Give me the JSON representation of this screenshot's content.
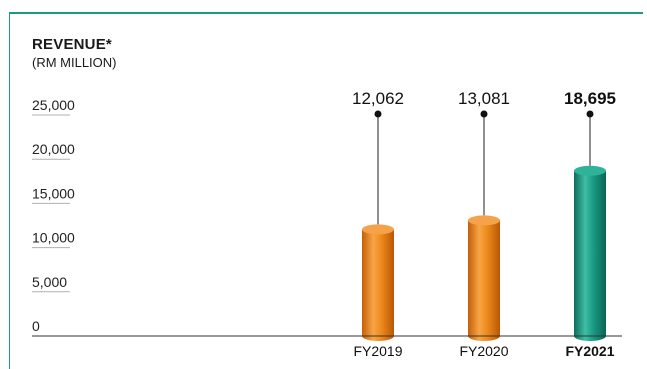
{
  "chart_data": {
    "type": "bar",
    "title": "REVENUE*",
    "subtitle": "(RM MILLION)",
    "categories": [
      "FY2019",
      "FY2020",
      "FY2021"
    ],
    "values": [
      12062,
      13081,
      18695
    ],
    "value_labels": [
      "12,062",
      "13,081",
      "18,695"
    ],
    "highlight_index": 2,
    "ylim": [
      0,
      25000
    ],
    "yticks": [
      0,
      5000,
      10000,
      15000,
      20000,
      25000
    ],
    "ytick_labels": [
      "0",
      "5,000",
      "10,000",
      "15,000",
      "20,000",
      "25,000"
    ],
    "colors": {
      "bar_default": "#ee8a1c",
      "bar_highlight": "#1b9a84",
      "frame": "#1b9a84"
    }
  }
}
